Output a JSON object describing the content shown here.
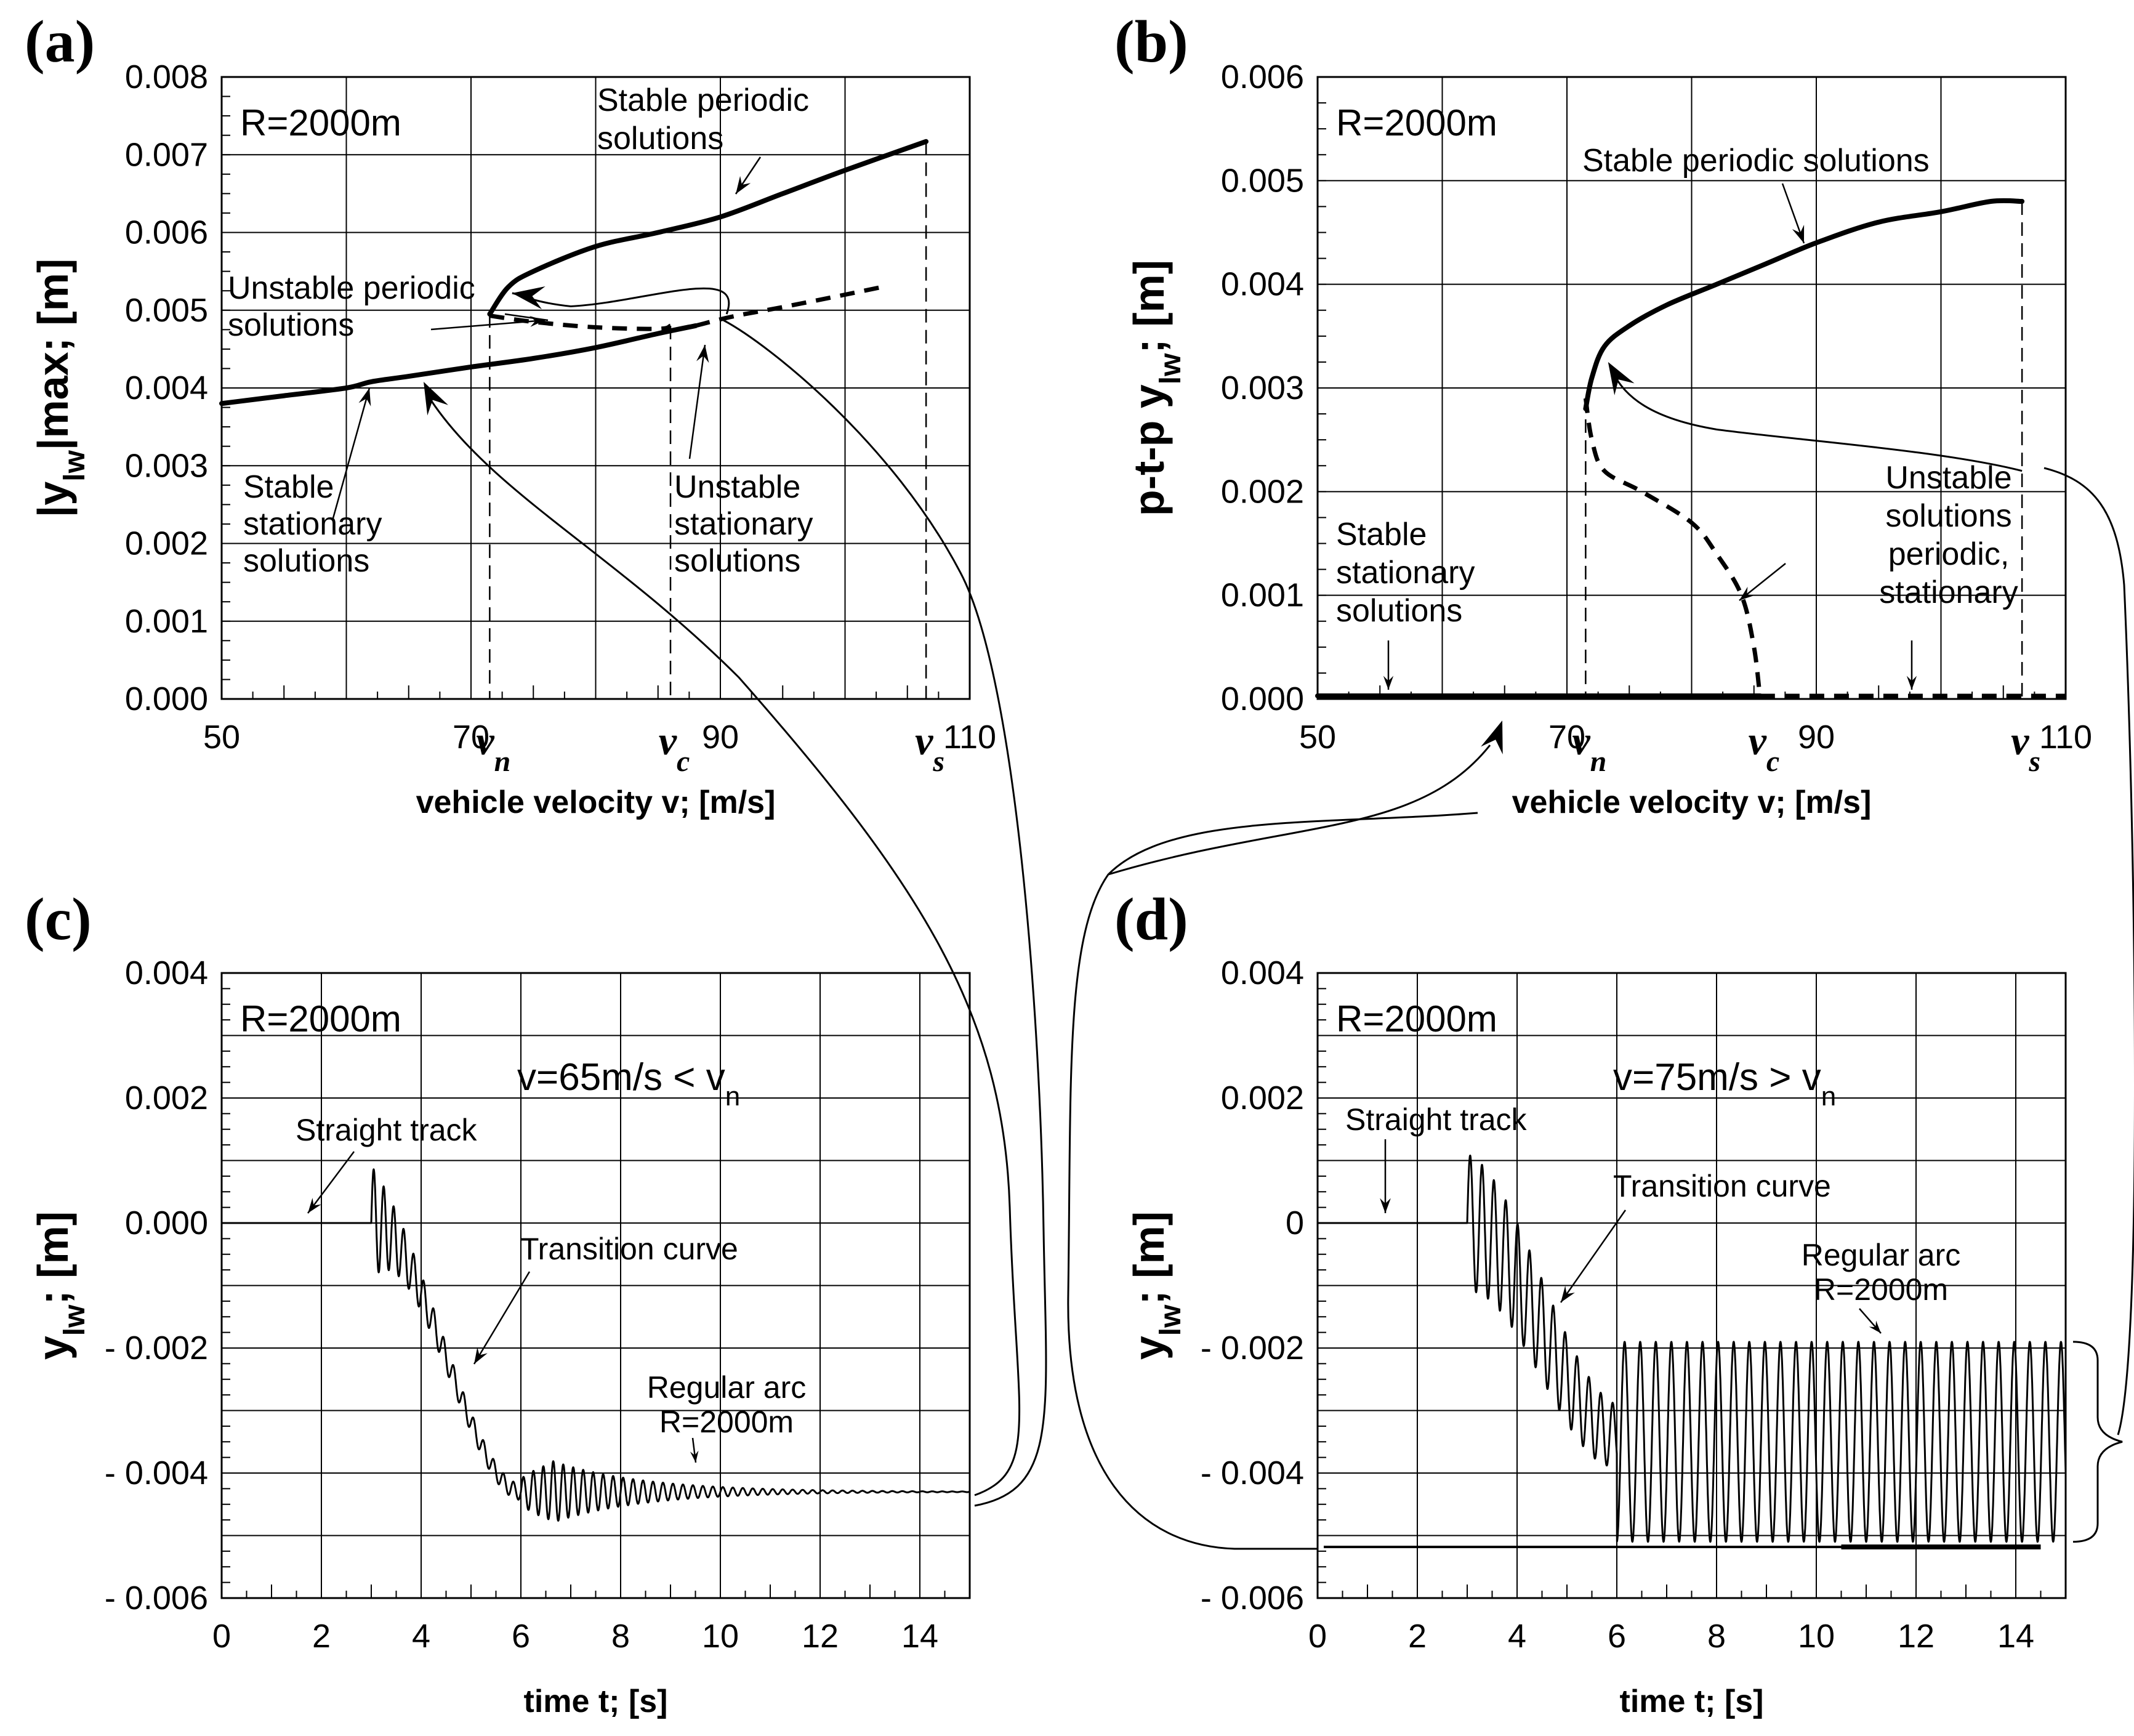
{
  "chart_data": [
    {
      "id": "a",
      "type": "line",
      "panel_label": "(a)",
      "xlabel": "vehicle velocity v; [m/s]",
      "ylabel": "|y_lw|max; [m]",
      "ylabel_parts": [
        "|y",
        "lw",
        "|max; [m]"
      ],
      "xlim": [
        50,
        110
      ],
      "ylim": [
        0,
        0.008
      ],
      "grid": true,
      "xtick_labels": [
        {
          "x": 50,
          "text": "50"
        },
        {
          "x": 70,
          "text": "70"
        },
        {
          "x": 90,
          "text": "90"
        },
        {
          "x": 110,
          "text": "110"
        }
      ],
      "ytick_labels": [
        "0.000",
        "0.001",
        "0.002",
        "0.003",
        "0.004",
        "0.005",
        "0.006",
        "0.007",
        "0.008"
      ],
      "radius_text": "R=2000m",
      "critical_speeds": [
        {
          "letter": "v",
          "sub": "n",
          "x": 71.5,
          "ytop": 0.00495
        },
        {
          "letter": "v",
          "sub": "c",
          "x": 86,
          "ytop": 0.0048
        },
        {
          "letter": "v",
          "sub": "s",
          "x": 106.5,
          "ytop": 0.00717
        }
      ],
      "series": [
        {
          "style": "thick",
          "x": [
            50,
            55,
            60,
            62,
            65,
            70,
            75,
            80,
            85,
            88,
            91,
            95,
            100,
            103
          ],
          "y": [
            0.0038,
            0.0039,
            0.004,
            0.00408,
            0.00415,
            0.00427,
            0.00438,
            0.00452,
            0.0047,
            0.0048,
            0.00492,
            0.00504,
            0.0052,
            0.00528
          ]
        },
        {
          "style": "dashed",
          "x": [
            88,
            91,
            95,
            100,
            103
          ],
          "y": [
            0.0048,
            0.00492,
            0.00504,
            0.0052,
            0.0053
          ]
        },
        {
          "style": "dashed",
          "x": [
            71.5,
            75,
            80,
            85,
            86
          ],
          "y": [
            0.00493,
            0.00485,
            0.00478,
            0.00476,
            0.0048
          ]
        },
        {
          "style": "thick",
          "x": [
            71.5,
            73,
            75,
            80,
            85,
            90,
            95,
            100,
            106.5
          ],
          "y": [
            0.00495,
            0.0053,
            0.0055,
            0.00582,
            0.006,
            0.0062,
            0.0065,
            0.0068,
            0.00717
          ]
        }
      ],
      "annotations": [
        {
          "lines": [
            "Stable periodic",
            "solutions"
          ]
        },
        {
          "lines": [
            "Unstable periodic",
            "solutions"
          ]
        },
        {
          "lines": [
            "Stable",
            "stationary",
            "solutions"
          ]
        },
        {
          "lines": [
            "Unstable",
            "stationary",
            "solutions"
          ]
        }
      ]
    },
    {
      "id": "b",
      "type": "line",
      "panel_label": "(b)",
      "xlabel": "vehicle velocity v; [m/s]",
      "ylabel": "p-t-p y_lw; [m]",
      "ylabel_parts": [
        "p-t-p y",
        "lw",
        "; [m]"
      ],
      "xlim": [
        50,
        110
      ],
      "ylim": [
        0,
        0.006
      ],
      "grid": true,
      "xtick_labels": [
        {
          "x": 50,
          "text": "50"
        },
        {
          "x": 70,
          "text": "70"
        },
        {
          "x": 90,
          "text": "90"
        },
        {
          "x": 110,
          "text": "110"
        }
      ],
      "ytick_labels": [
        "0.000",
        "0.001",
        "0.002",
        "0.003",
        "0.004",
        "0.005",
        "0.006"
      ],
      "radius_text": "R=2000m",
      "critical_speeds": [
        {
          "letter": "v",
          "sub": "n",
          "x": 71.5,
          "ytop": 0.0029
        },
        {
          "letter": "v",
          "sub": "c",
          "x": 85.5,
          "ytop": 0.0
        },
        {
          "letter": "v",
          "sub": "s",
          "x": 106.5,
          "ytop": 0.0048
        }
      ],
      "series": [
        {
          "style": "thick",
          "x": [
            50,
            71.5
          ],
          "y": [
            3e-05,
            3e-05
          ]
        },
        {
          "style": "thick",
          "x": [
            71.5,
            85.5
          ],
          "y": [
            3e-05,
            3e-05
          ]
        },
        {
          "style": "dashed",
          "x": [
            85.5,
            95,
            100,
            105,
            110
          ],
          "y": [
            3e-05,
            3e-05,
            3e-05,
            3e-05,
            3e-05
          ]
        },
        {
          "style": "dashed",
          "x": [
            71.5,
            72,
            73,
            76,
            80,
            82,
            84,
            85,
            85.5
          ],
          "y": [
            0.0029,
            0.0025,
            0.0022,
            0.002,
            0.0017,
            0.0014,
            0.001,
            0.0005,
            0.0
          ]
        },
        {
          "style": "thick",
          "x": [
            71.5,
            72,
            73,
            75,
            78,
            82,
            86,
            90,
            95,
            100,
            104,
            106.5
          ],
          "y": [
            0.0028,
            0.0031,
            0.0034,
            0.0036,
            0.0038,
            0.004,
            0.0042,
            0.0044,
            0.0046,
            0.0047,
            0.0048,
            0.0048
          ]
        }
      ],
      "annotations": [
        {
          "lines": [
            "Stable periodic solutions"
          ]
        },
        {
          "lines": [
            "Unstable",
            "solutions",
            "periodic,",
            "stationary"
          ]
        },
        {
          "lines": [
            "Stable",
            "stationary",
            "solutions"
          ]
        }
      ]
    },
    {
      "id": "c",
      "type": "line",
      "panel_label": "(c)",
      "xlabel": "time t; [s]",
      "ylabel": "y_lw; [m]",
      "ylabel_parts": [
        "y",
        "lw",
        "; [m]"
      ],
      "xlim": [
        0,
        15
      ],
      "ylim": [
        -0.006,
        0.004
      ],
      "grid": true,
      "xtick_labels": [
        {
          "x": 0,
          "text": "0"
        },
        {
          "x": 2,
          "text": "2"
        },
        {
          "x": 4,
          "text": "4"
        },
        {
          "x": 6,
          "text": "6"
        },
        {
          "x": 8,
          "text": "8"
        },
        {
          "x": 10,
          "text": "10"
        },
        {
          "x": 12,
          "text": "12"
        },
        {
          "x": 14,
          "text": "14"
        }
      ],
      "ytick_labels": [
        {
          "y": 0.004,
          "text": "0.004"
        },
        {
          "y": 0.002,
          "text": "0.002"
        },
        {
          "y": 0,
          "text": "0.000"
        },
        {
          "y": -0.002,
          "text": "- 0.002"
        },
        {
          "y": -0.004,
          "text": "- 0.004"
        },
        {
          "y": -0.006,
          "text": "- 0.006"
        }
      ],
      "radius_text": "R=2000m",
      "velocity_text": [
        "v=65m/s < v",
        "n"
      ],
      "signal": {
        "straight_end": 3.0,
        "transition_end": 6.0,
        "final": -0.0043,
        "pre_amp": 0.0008,
        "arc_amp": 0.0007,
        "freq": 5.0,
        "decay": 0.55
      },
      "annotations": [
        {
          "lines": [
            "Straight track"
          ]
        },
        {
          "lines": [
            "Transition curve"
          ]
        },
        {
          "lines": [
            "Regular arc",
            "R=2000m"
          ]
        }
      ]
    },
    {
      "id": "d",
      "type": "line",
      "panel_label": "(d)",
      "xlabel": "time t; [s]",
      "ylabel": "y_lw; [m]",
      "ylabel_parts": [
        "y",
        "lw",
        "; [m]"
      ],
      "xlim": [
        0,
        15
      ],
      "ylim": [
        -0.006,
        0.004
      ],
      "grid": true,
      "xtick_labels": [
        {
          "x": 0,
          "text": "0"
        },
        {
          "x": 2,
          "text": "2"
        },
        {
          "x": 4,
          "text": "4"
        },
        {
          "x": 6,
          "text": "6"
        },
        {
          "x": 8,
          "text": "8"
        },
        {
          "x": 10,
          "text": "10"
        },
        {
          "x": 12,
          "text": "12"
        },
        {
          "x": 14,
          "text": "14"
        }
      ],
      "ytick_labels": [
        {
          "y": 0.004,
          "text": "0.004"
        },
        {
          "y": 0.002,
          "text": "0.002"
        },
        {
          "y": 0,
          "text": "0"
        },
        {
          "y": -0.002,
          "text": "- 0.002"
        },
        {
          "y": -0.004,
          "text": "- 0.004"
        },
        {
          "y": -0.006,
          "text": "- 0.006"
        }
      ],
      "radius_text": "R=2000m",
      "velocity_text": [
        "v=75m/s > v",
        "n"
      ],
      "signal": {
        "straight_end": 3.0,
        "transition_end": 6.0,
        "final": -0.0035,
        "osc_min": -0.0051,
        "osc_max": -0.0019,
        "freq": 3.2
      },
      "annotations": [
        {
          "lines": [
            "Straight track"
          ]
        },
        {
          "lines": [
            "Transition curve"
          ]
        },
        {
          "lines": [
            "Regular arc",
            "R=2000m"
          ]
        }
      ]
    }
  ]
}
